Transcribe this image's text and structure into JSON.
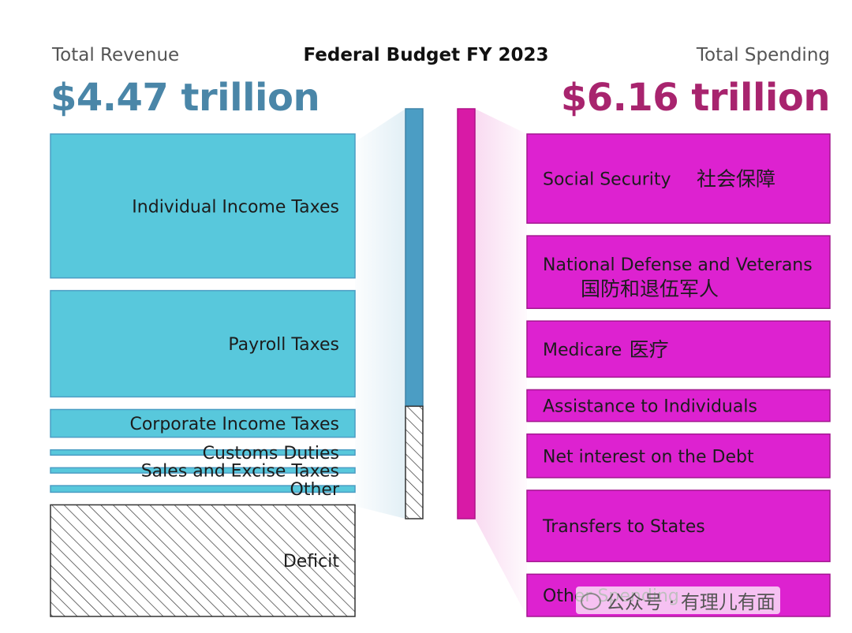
{
  "header": {
    "title": "Federal Budget FY 2023",
    "left_label": "Total Revenue",
    "left_total": "$4.47 trillion",
    "right_label": "Total Spending",
    "right_total": "$6.16 trillion"
  },
  "colors": {
    "revenue": "#4b9dc4",
    "revenue_fill": "#58c8dc",
    "spending": "#d81aa6",
    "spending_fill": "#dd22d0",
    "revenue_text": "#4a86a8",
    "spending_text": "#a8246e"
  },
  "chart_data": {
    "type": "bar",
    "title": "Federal Budget FY 2023",
    "units": "trillion USD",
    "totals": {
      "revenue": 4.47,
      "spending": 6.16,
      "deficit": 1.69
    },
    "revenue": [
      {
        "label": "Individual Income Taxes",
        "value": 2.18,
        "pattern": "solid"
      },
      {
        "label": "Payroll Taxes",
        "value": 1.61,
        "pattern": "solid"
      },
      {
        "label": "Corporate Income Taxes",
        "value": 0.42,
        "pattern": "solid"
      },
      {
        "label": "Customs Duties",
        "value": 0.08,
        "pattern": "solid"
      },
      {
        "label": "Sales and Excise Taxes",
        "value": 0.08,
        "pattern": "solid"
      },
      {
        "label": "Other",
        "value": 0.1,
        "pattern": "solid"
      },
      {
        "label": "Deficit",
        "value": 1.69,
        "pattern": "hatch"
      }
    ],
    "spending": [
      {
        "label": "Social Security",
        "label_cn": "社会保障",
        "value": 1.35
      },
      {
        "label": "National Defense and Veterans",
        "label_cn": "国防和退伍军人",
        "value": 1.1
      },
      {
        "label": "Medicare",
        "label_cn": "医疗",
        "value": 0.85
      },
      {
        "label": "Assistance to Individuals",
        "label_cn": "",
        "value": 0.48
      },
      {
        "label": "Net interest on the Debt",
        "label_cn": "",
        "value": 0.66
      },
      {
        "label": "Transfers to States",
        "label_cn": "",
        "value": 1.08
      },
      {
        "label": "Other Spending",
        "label_cn": "",
        "value": 0.64
      }
    ]
  },
  "watermark": "公众号 · 有理儿有面"
}
